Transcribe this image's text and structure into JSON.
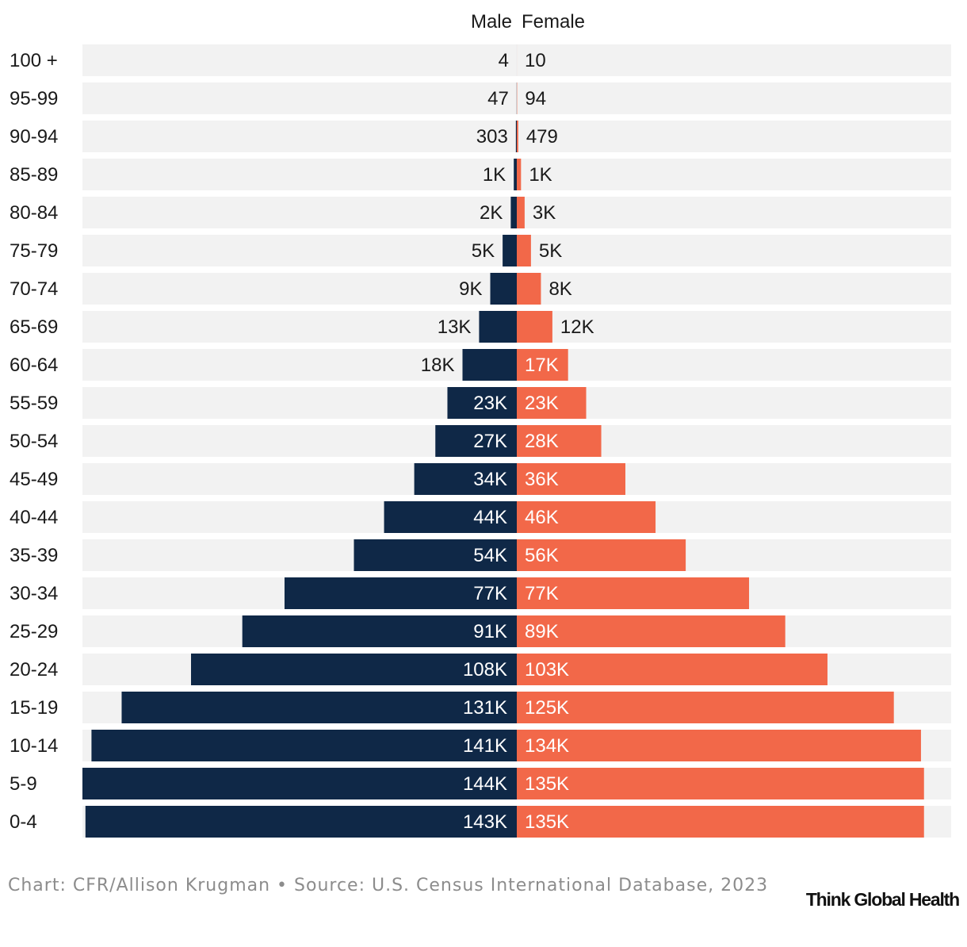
{
  "chart_data": {
    "type": "bar",
    "orientation": "horizontal-diverging",
    "legend": [
      "Male",
      "Female"
    ],
    "categories": [
      "100 +",
      "95-99",
      "90-94",
      "85-89",
      "80-84",
      "75-79",
      "70-74",
      "65-69",
      "60-64",
      "55-59",
      "50-54",
      "45-49",
      "40-44",
      "35-39",
      "30-34",
      "25-29",
      "20-24",
      "15-19",
      "10-14",
      "5-9",
      "0-4"
    ],
    "series": [
      {
        "name": "Male",
        "color": "#0f2847",
        "values": [
          4,
          47,
          303,
          1000,
          2000,
          4700,
          8800,
          12500,
          18000,
          23000,
          27000,
          34000,
          44000,
          54000,
          77000,
          91000,
          108000,
          131000,
          141000,
          144000,
          143000
        ],
        "labels": [
          "4",
          "47",
          "303",
          "1K",
          "2K",
          "5K",
          "9K",
          "13K",
          "18K",
          "23K",
          "27K",
          "34K",
          "44K",
          "54K",
          "77K",
          "91K",
          "108K",
          "131K",
          "141K",
          "144K",
          "143K"
        ]
      },
      {
        "name": "Female",
        "color": "#f26849",
        "values": [
          10,
          94,
          479,
          1400,
          2600,
          4700,
          8000,
          11800,
          17000,
          23000,
          28000,
          36000,
          46000,
          56000,
          77000,
          89000,
          103000,
          125000,
          134000,
          135000,
          135000
        ],
        "labels": [
          "10",
          "94",
          "479",
          "1K",
          "3K",
          "5K",
          "8K",
          "12K",
          "17K",
          "23K",
          "28K",
          "36K",
          "46K",
          "56K",
          "77K",
          "89K",
          "103K",
          "125K",
          "134K",
          "135K",
          "135K"
        ]
      }
    ],
    "xlim": [
      -144000,
      144000
    ]
  },
  "footer": {
    "credit": "Chart: CFR/Allison Krugman • Source: U.S. Census International Database, 2023",
    "logo": "Think Global Health"
  }
}
